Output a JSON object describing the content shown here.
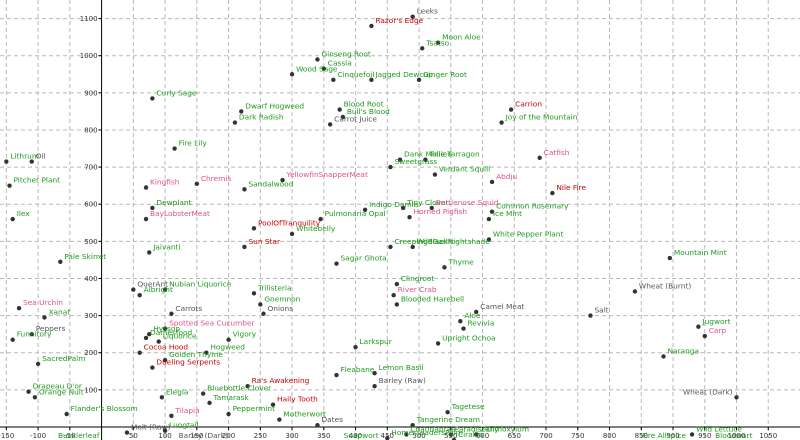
{
  "chart_data": {
    "type": "scatter",
    "title": "",
    "xlabel": "",
    "ylabel": "",
    "xlim": [
      -160,
      1100
    ],
    "ylim": [
      -35,
      1150
    ],
    "xticks": [
      -150,
      -100,
      -50,
      50,
      100,
      150,
      200,
      250,
      300,
      350,
      400,
      450,
      500,
      550,
      600,
      650,
      700,
      750,
      800,
      850,
      900,
      950,
      1000,
      1050
    ],
    "yticks": [
      100,
      200,
      300,
      400,
      500,
      600,
      700,
      800,
      900,
      1000,
      1100
    ],
    "grid": true,
    "colors": {
      "green": "#1c9a1c",
      "pink": "#e0508e",
      "red": "#c80000",
      "gray": "#555555",
      "dot": "#333333"
    },
    "points": [
      {
        "label": "Leeks",
        "x": 490,
        "y": 1105,
        "c": "gray"
      },
      {
        "label": "Razor's Edge",
        "x": 425,
        "y": 1080,
        "c": "red"
      },
      {
        "label": "Moon Aloe",
        "x": 530,
        "y": 1035,
        "c": "green"
      },
      {
        "label": "Tsatso",
        "x": 505,
        "y": 1020,
        "c": "green"
      },
      {
        "label": "Ginseng Root",
        "x": 340,
        "y": 990,
        "c": "green"
      },
      {
        "label": "Cassia",
        "x": 350,
        "y": 965,
        "c": "green"
      },
      {
        "label": "Wood Sage",
        "x": 300,
        "y": 950,
        "c": "green"
      },
      {
        "label": "Cinquefoil",
        "x": 365,
        "y": 935,
        "c": "green"
      },
      {
        "label": "Jagged Dewcup",
        "x": 425,
        "y": 935,
        "c": "green"
      },
      {
        "label": "Ginger Root",
        "x": 500,
        "y": 935,
        "c": "green"
      },
      {
        "label": "Curly Sage",
        "x": 80,
        "y": 885,
        "c": "green"
      },
      {
        "label": "Blood Root",
        "x": 375,
        "y": 855,
        "c": "green"
      },
      {
        "label": "Dwarf Hogweed",
        "x": 220,
        "y": 850,
        "c": "green"
      },
      {
        "label": "Bull's Blood",
        "x": 380,
        "y": 835,
        "c": "green"
      },
      {
        "label": "Carrion",
        "x": 645,
        "y": 855,
        "c": "red"
      },
      {
        "label": "Joy of the Mountain",
        "x": 630,
        "y": 820,
        "c": "green"
      },
      {
        "label": "Dark Radish",
        "x": 210,
        "y": 820,
        "c": "green"
      },
      {
        "label": "Carrot Juice",
        "x": 360,
        "y": 815,
        "c": "gray"
      },
      {
        "label": "Fire Lily",
        "x": 115,
        "y": 750,
        "c": "green"
      },
      {
        "label": "Oil",
        "x": -110,
        "y": 715,
        "c": "gray"
      },
      {
        "label": "Lithrum",
        "x": -150,
        "y": 715,
        "c": "green"
      },
      {
        "label": "Dank Mullien",
        "x": 470,
        "y": 720,
        "c": "green"
      },
      {
        "label": "True Tarragon",
        "x": 510,
        "y": 720,
        "c": "green"
      },
      {
        "label": "Catfish",
        "x": 690,
        "y": 725,
        "c": "pink"
      },
      {
        "label": "Sweetgrass",
        "x": 455,
        "y": 700,
        "c": "green"
      },
      {
        "label": "Verdant Squill",
        "x": 525,
        "y": 680,
        "c": "green"
      },
      {
        "label": "Abdju",
        "x": 615,
        "y": 660,
        "c": "pink"
      },
      {
        "label": "Kingfish",
        "x": 70,
        "y": 645,
        "c": "pink"
      },
      {
        "label": "Chremis",
        "x": 150,
        "y": 655,
        "c": "pink"
      },
      {
        "label": "Sandalwood",
        "x": 225,
        "y": 640,
        "c": "green"
      },
      {
        "label": "YellowfinSnapperMeat",
        "x": 285,
        "y": 665,
        "c": "pink"
      },
      {
        "label": "Nile Fire",
        "x": 710,
        "y": 630,
        "c": "red"
      },
      {
        "label": "Pitcher Plant",
        "x": -145,
        "y": 650,
        "c": "green"
      },
      {
        "label": "Dewplant",
        "x": 80,
        "y": 590,
        "c": "green"
      },
      {
        "label": "Indigo Damia",
        "x": 415,
        "y": 585,
        "c": "green"
      },
      {
        "label": "Tiny Clover",
        "x": 475,
        "y": 590,
        "c": "green"
      },
      {
        "label": "Bottlenose Squid",
        "x": 520,
        "y": 590,
        "c": "pink"
      },
      {
        "label": "Common Rosemary",
        "x": 615,
        "y": 580,
        "c": "green"
      },
      {
        "label": "Ice Mint",
        "x": 610,
        "y": 560,
        "c": "green"
      },
      {
        "label": "Horned Pigfish",
        "x": 485,
        "y": 565,
        "c": "pink"
      },
      {
        "label": "Ilex",
        "x": -140,
        "y": 560,
        "c": "green"
      },
      {
        "label": "BayLobsterMeat",
        "x": 70,
        "y": 560,
        "c": "pink"
      },
      {
        "label": "Pulmonaria Opal",
        "x": 345,
        "y": 560,
        "c": "green"
      },
      {
        "label": "PoolOfTranquility",
        "x": 240,
        "y": 535,
        "c": "red"
      },
      {
        "label": "Whitebelly",
        "x": 300,
        "y": 520,
        "c": "green"
      },
      {
        "label": "White Pepper Plant",
        "x": 610,
        "y": 505,
        "c": "green"
      },
      {
        "label": "Sun Star",
        "x": 225,
        "y": 485,
        "c": "red"
      },
      {
        "label": "CreepingBlackNightshade",
        "x": 455,
        "y": 485,
        "c": "green"
      },
      {
        "label": "Jaivanti",
        "x": 75,
        "y": 470,
        "c": "green"
      },
      {
        "label": "WildGarlic",
        "x": 490,
        "y": 485,
        "c": "green"
      },
      {
        "label": "Pale Skirret",
        "x": -65,
        "y": 445,
        "c": "green"
      },
      {
        "label": "Sagar Ghota",
        "x": 370,
        "y": 440,
        "c": "green"
      },
      {
        "label": "Mountain Mint",
        "x": 895,
        "y": 455,
        "c": "green"
      },
      {
        "label": "Thyme",
        "x": 540,
        "y": 430,
        "c": "green"
      },
      {
        "label": "Clingroot",
        "x": 465,
        "y": 385,
        "c": "green"
      },
      {
        "label": "QuerAnt",
        "x": 50,
        "y": 370,
        "c": "gray"
      },
      {
        "label": "Nubian Liquorice",
        "x": 100,
        "y": 370,
        "c": "green"
      },
      {
        "label": "Wheat (Burnt)",
        "x": 840,
        "y": 365,
        "c": "gray"
      },
      {
        "label": "Albright",
        "x": 60,
        "y": 355,
        "c": "green"
      },
      {
        "label": "Trilisteria",
        "x": 240,
        "y": 360,
        "c": "green"
      },
      {
        "label": "River Crab",
        "x": 460,
        "y": 355,
        "c": "pink"
      },
      {
        "label": "Gnemnon",
        "x": 250,
        "y": 330,
        "c": "green"
      },
      {
        "label": "Blooded Harebell",
        "x": 465,
        "y": 330,
        "c": "green"
      },
      {
        "label": "Sea Urchin",
        "x": -130,
        "y": 320,
        "c": "pink"
      },
      {
        "label": "Carrots",
        "x": 110,
        "y": 305,
        "c": "gray"
      },
      {
        "label": "Onions",
        "x": 255,
        "y": 305,
        "c": "gray"
      },
      {
        "label": "Camel Meat",
        "x": 590,
        "y": 310,
        "c": "gray"
      },
      {
        "label": "Xanat",
        "x": -90,
        "y": 295,
        "c": "green"
      },
      {
        "label": "Salt",
        "x": 770,
        "y": 300,
        "c": "gray"
      },
      {
        "label": "Aloe",
        "x": 565,
        "y": 285,
        "c": "green"
      },
      {
        "label": "Spotted Sea Cucumber",
        "x": 100,
        "y": 265,
        "c": "pink"
      },
      {
        "label": "Revivia",
        "x": 570,
        "y": 265,
        "c": "green"
      },
      {
        "label": "Jugwort",
        "x": 940,
        "y": 270,
        "c": "green"
      },
      {
        "label": "Peppers",
        "x": -110,
        "y": 250,
        "c": "gray"
      },
      {
        "label": "Hyssop",
        "x": 75,
        "y": 250,
        "c": "green"
      },
      {
        "label": "Damesfood",
        "x": 70,
        "y": 240,
        "c": "green"
      },
      {
        "label": "Funnitory",
        "x": -140,
        "y": 235,
        "c": "green"
      },
      {
        "label": "Carp",
        "x": 950,
        "y": 245,
        "c": "pink"
      },
      {
        "label": "Liquorice",
        "x": 90,
        "y": 230,
        "c": "green"
      },
      {
        "label": "Vigory",
        "x": 200,
        "y": 235,
        "c": "green"
      },
      {
        "label": "Upright Ochoa",
        "x": 530,
        "y": 225,
        "c": "green"
      },
      {
        "label": "Larkspur",
        "x": 400,
        "y": 215,
        "c": "green"
      },
      {
        "label": "Cocoa Hood",
        "x": 60,
        "y": 200,
        "c": "red"
      },
      {
        "label": "Hogweed",
        "x": 165,
        "y": 200,
        "c": "green"
      },
      {
        "label": "Naranga",
        "x": 885,
        "y": 190,
        "c": "green"
      },
      {
        "label": "Golden Thyme",
        "x": 100,
        "y": 180,
        "c": "green"
      },
      {
        "label": "SacredPalm",
        "x": -100,
        "y": 170,
        "c": "green"
      },
      {
        "label": "Dueling Serpents",
        "x": 80,
        "y": 160,
        "c": "red"
      },
      {
        "label": "Fleabane",
        "x": 370,
        "y": 140,
        "c": "green"
      },
      {
        "label": "Lemon Basil",
        "x": 430,
        "y": 145,
        "c": "green"
      },
      {
        "label": "Ra's Awakening",
        "x": 230,
        "y": 110,
        "c": "red"
      },
      {
        "label": "Barley (Raw)",
        "x": 430,
        "y": 110,
        "c": "gray"
      },
      {
        "label": "Drapeau D'or",
        "x": -115,
        "y": 95,
        "c": "green"
      },
      {
        "label": "Bluebottle Clover",
        "x": 160,
        "y": 90,
        "c": "green"
      },
      {
        "label": "Orange Nuit",
        "x": -105,
        "y": 80,
        "c": "green"
      },
      {
        "label": "Elegia",
        "x": 95,
        "y": 80,
        "c": "green"
      },
      {
        "label": "Wheat (Dark)",
        "x": 1000,
        "y": 80,
        "c": "gray"
      },
      {
        "label": "Tamarask",
        "x": 170,
        "y": 65,
        "c": "green"
      },
      {
        "label": "Haily Tooth",
        "x": 270,
        "y": 60,
        "c": "red"
      },
      {
        "label": "Tagetese",
        "x": 545,
        "y": 40,
        "c": "green"
      },
      {
        "label": "Peppermint",
        "x": 200,
        "y": 35,
        "c": "green"
      },
      {
        "label": "Flander's Blossom",
        "x": -55,
        "y": 35,
        "c": "green"
      },
      {
        "label": "Tilapia",
        "x": 110,
        "y": 30,
        "c": "pink"
      },
      {
        "label": "Motherwort",
        "x": 280,
        "y": 20,
        "c": "green"
      },
      {
        "label": "Tangerine Dream",
        "x": 490,
        "y": 5,
        "c": "green"
      },
      {
        "label": "Dates",
        "x": 340,
        "y": 5,
        "c": "gray"
      },
      {
        "label": "Chatinabrae",
        "x": 480,
        "y": -20,
        "c": "green"
      },
      {
        "label": "ParadiseLily",
        "x": 550,
        "y": -20,
        "c": "green"
      },
      {
        "label": "Zanthoxylum",
        "x": 590,
        "y": -20,
        "c": "green"
      },
      {
        "label": "Wild Lettuce",
        "x": 930,
        "y": -20,
        "c": "green"
      },
      {
        "label": "Malt (Raw)",
        "x": 40,
        "y": -15,
        "c": "gray"
      },
      {
        "label": "Lungtail",
        "x": 100,
        "y": -10,
        "c": "green"
      },
      {
        "label": "HomesteadersPalm",
        "x": 450,
        "y": -30,
        "c": "green"
      },
      {
        "label": "Cirallis",
        "x": 555,
        "y": -35,
        "c": "green"
      },
      {
        "label": "Bucklerleaf",
        "x": -75,
        "y": -55,
        "c": "green"
      },
      {
        "label": "Barley (Dark)",
        "x": 115,
        "y": -55,
        "c": "gray"
      },
      {
        "label": "Soapwort",
        "x": 375,
        "y": -55,
        "c": "green"
      },
      {
        "label": "Fire Allspice",
        "x": 845,
        "y": -55,
        "c": "green"
      },
      {
        "label": "Bloodwort",
        "x": 960,
        "y": -55,
        "c": "green"
      }
    ]
  }
}
